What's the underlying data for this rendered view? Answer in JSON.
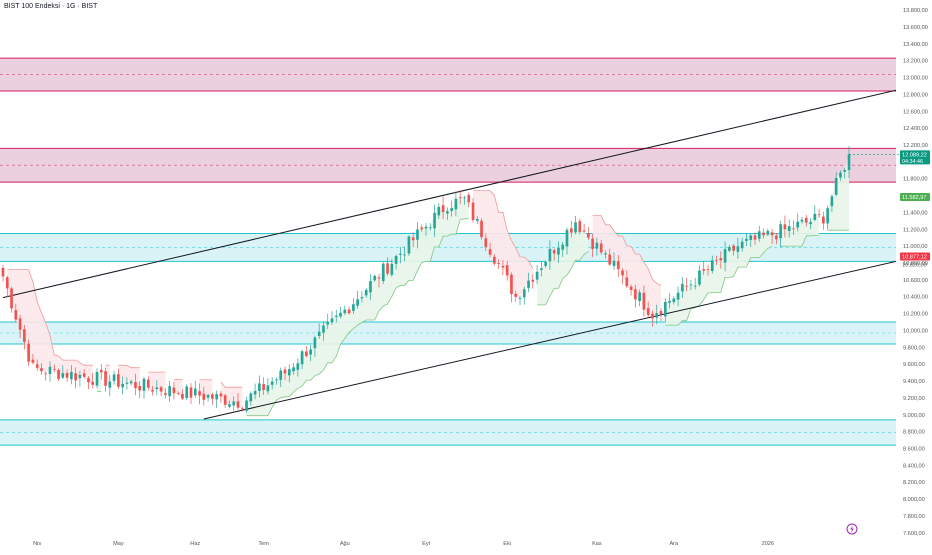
{
  "title": "BIST 100 Endeksi · 1G · BIST",
  "colors": {
    "up": "#26a69a",
    "down": "#ef5350",
    "resistance_fill": "#e6c6d8",
    "resistance_border": "#d81b60",
    "support_fill": "#d3f1f6",
    "support_border": "#22c4d0",
    "channel_line": "#131722",
    "cloud_bull_fill": "#e8f5e9",
    "cloud_bull_line": "#81c784",
    "cloud_bear_fill": "#fde8ea",
    "cloud_bear_line": "#ef9a9a",
    "price_label": "#089981",
    "level_label_green": "#4caf50",
    "level_label_red": "#f23645",
    "axis_text": "#555555",
    "watermark": "#9c27b0"
  },
  "price_axis": {
    "ticks": [
      "13.800,00",
      "13.600,00",
      "13.400,00",
      "13.200,00",
      "13.000,00",
      "12.800,00",
      "12.600,00",
      "12.400,00",
      "12.200,00",
      "12.000,00",
      "11.800,00",
      "11.600,00",
      "11.400,00",
      "11.200,00",
      "11.000,00",
      "10.800,00",
      "10.600,00",
      "10.400,00",
      "10.200,00",
      "10.000,00",
      "9.800,00",
      "9.600,00",
      "9.400,00",
      "9.200,00",
      "9.000,00",
      "8.800,00",
      "8.600,00",
      "8.400,00",
      "8.200,00",
      "8.000,00",
      "7.800,00",
      "7.600,00"
    ],
    "labels": {
      "last_price": "12.089,22",
      "countdown": "04:34:46",
      "upper_level": "11.582,97",
      "lower_level_top": "10.877,12",
      "lower_level_bottom": "10.820,00"
    }
  },
  "time_axis": {
    "ticks": [
      "Nis",
      "May",
      "Haz",
      "Tem",
      "Ağu",
      "Eyl",
      "Eki",
      "Kas",
      "Ara",
      "2026"
    ]
  },
  "chart_data": {
    "type": "candlestick",
    "title": "BIST 100 Endeksi · 1G · BIST",
    "y_range": [
      7550,
      13920
    ],
    "grid": false,
    "zones": [
      {
        "kind": "resistance",
        "top": 13230,
        "bottom": 12840,
        "mid": 13035
      },
      {
        "kind": "resistance",
        "top": 12160,
        "bottom": 11760,
        "mid": 11960
      },
      {
        "kind": "support",
        "top": 11150,
        "bottom": 10820,
        "mid": 10985
      },
      {
        "kind": "support",
        "top": 10100,
        "bottom": 9840,
        "mid": 9970
      },
      {
        "kind": "support",
        "top": 8940,
        "bottom": 8640,
        "mid": 8790
      }
    ],
    "channel_lines": [
      {
        "from": [
          "start",
          10390
        ],
        "to": [
          "end",
          12850
        ]
      },
      {
        "from": [
          "Haz",
          8950
        ],
        "to": [
          "end",
          10820
        ]
      }
    ],
    "phases": [
      {
        "name": "drop",
        "days": 8,
        "start": 10800,
        "end": 9550
      },
      {
        "name": "range",
        "days": 37,
        "start": 9550,
        "end": 9250
      },
      {
        "name": "dip",
        "days": 12,
        "start": 9250,
        "end": 9150
      },
      {
        "name": "rally",
        "days": 10,
        "start": 9150,
        "end": 9500
      },
      {
        "name": "breakout",
        "days": 38,
        "start": 9500,
        "end": 11500
      },
      {
        "name": "peak",
        "days": 4,
        "start": 11500,
        "end": 11550
      },
      {
        "name": "pullback",
        "days": 12,
        "start": 11550,
        "end": 10400
      },
      {
        "name": "recovery",
        "days": 14,
        "start": 10400,
        "end": 11300
      },
      {
        "name": "retreat",
        "days": 18,
        "start": 11300,
        "end": 10200
      },
      {
        "name": "rebuild",
        "days": 20,
        "start": 10200,
        "end": 11000
      },
      {
        "name": "climb",
        "days": 20,
        "start": 11000,
        "end": 11350
      },
      {
        "name": "thrust",
        "days": 6,
        "start": 11350,
        "end": 12089
      }
    ],
    "last_price": 12089.22
  }
}
